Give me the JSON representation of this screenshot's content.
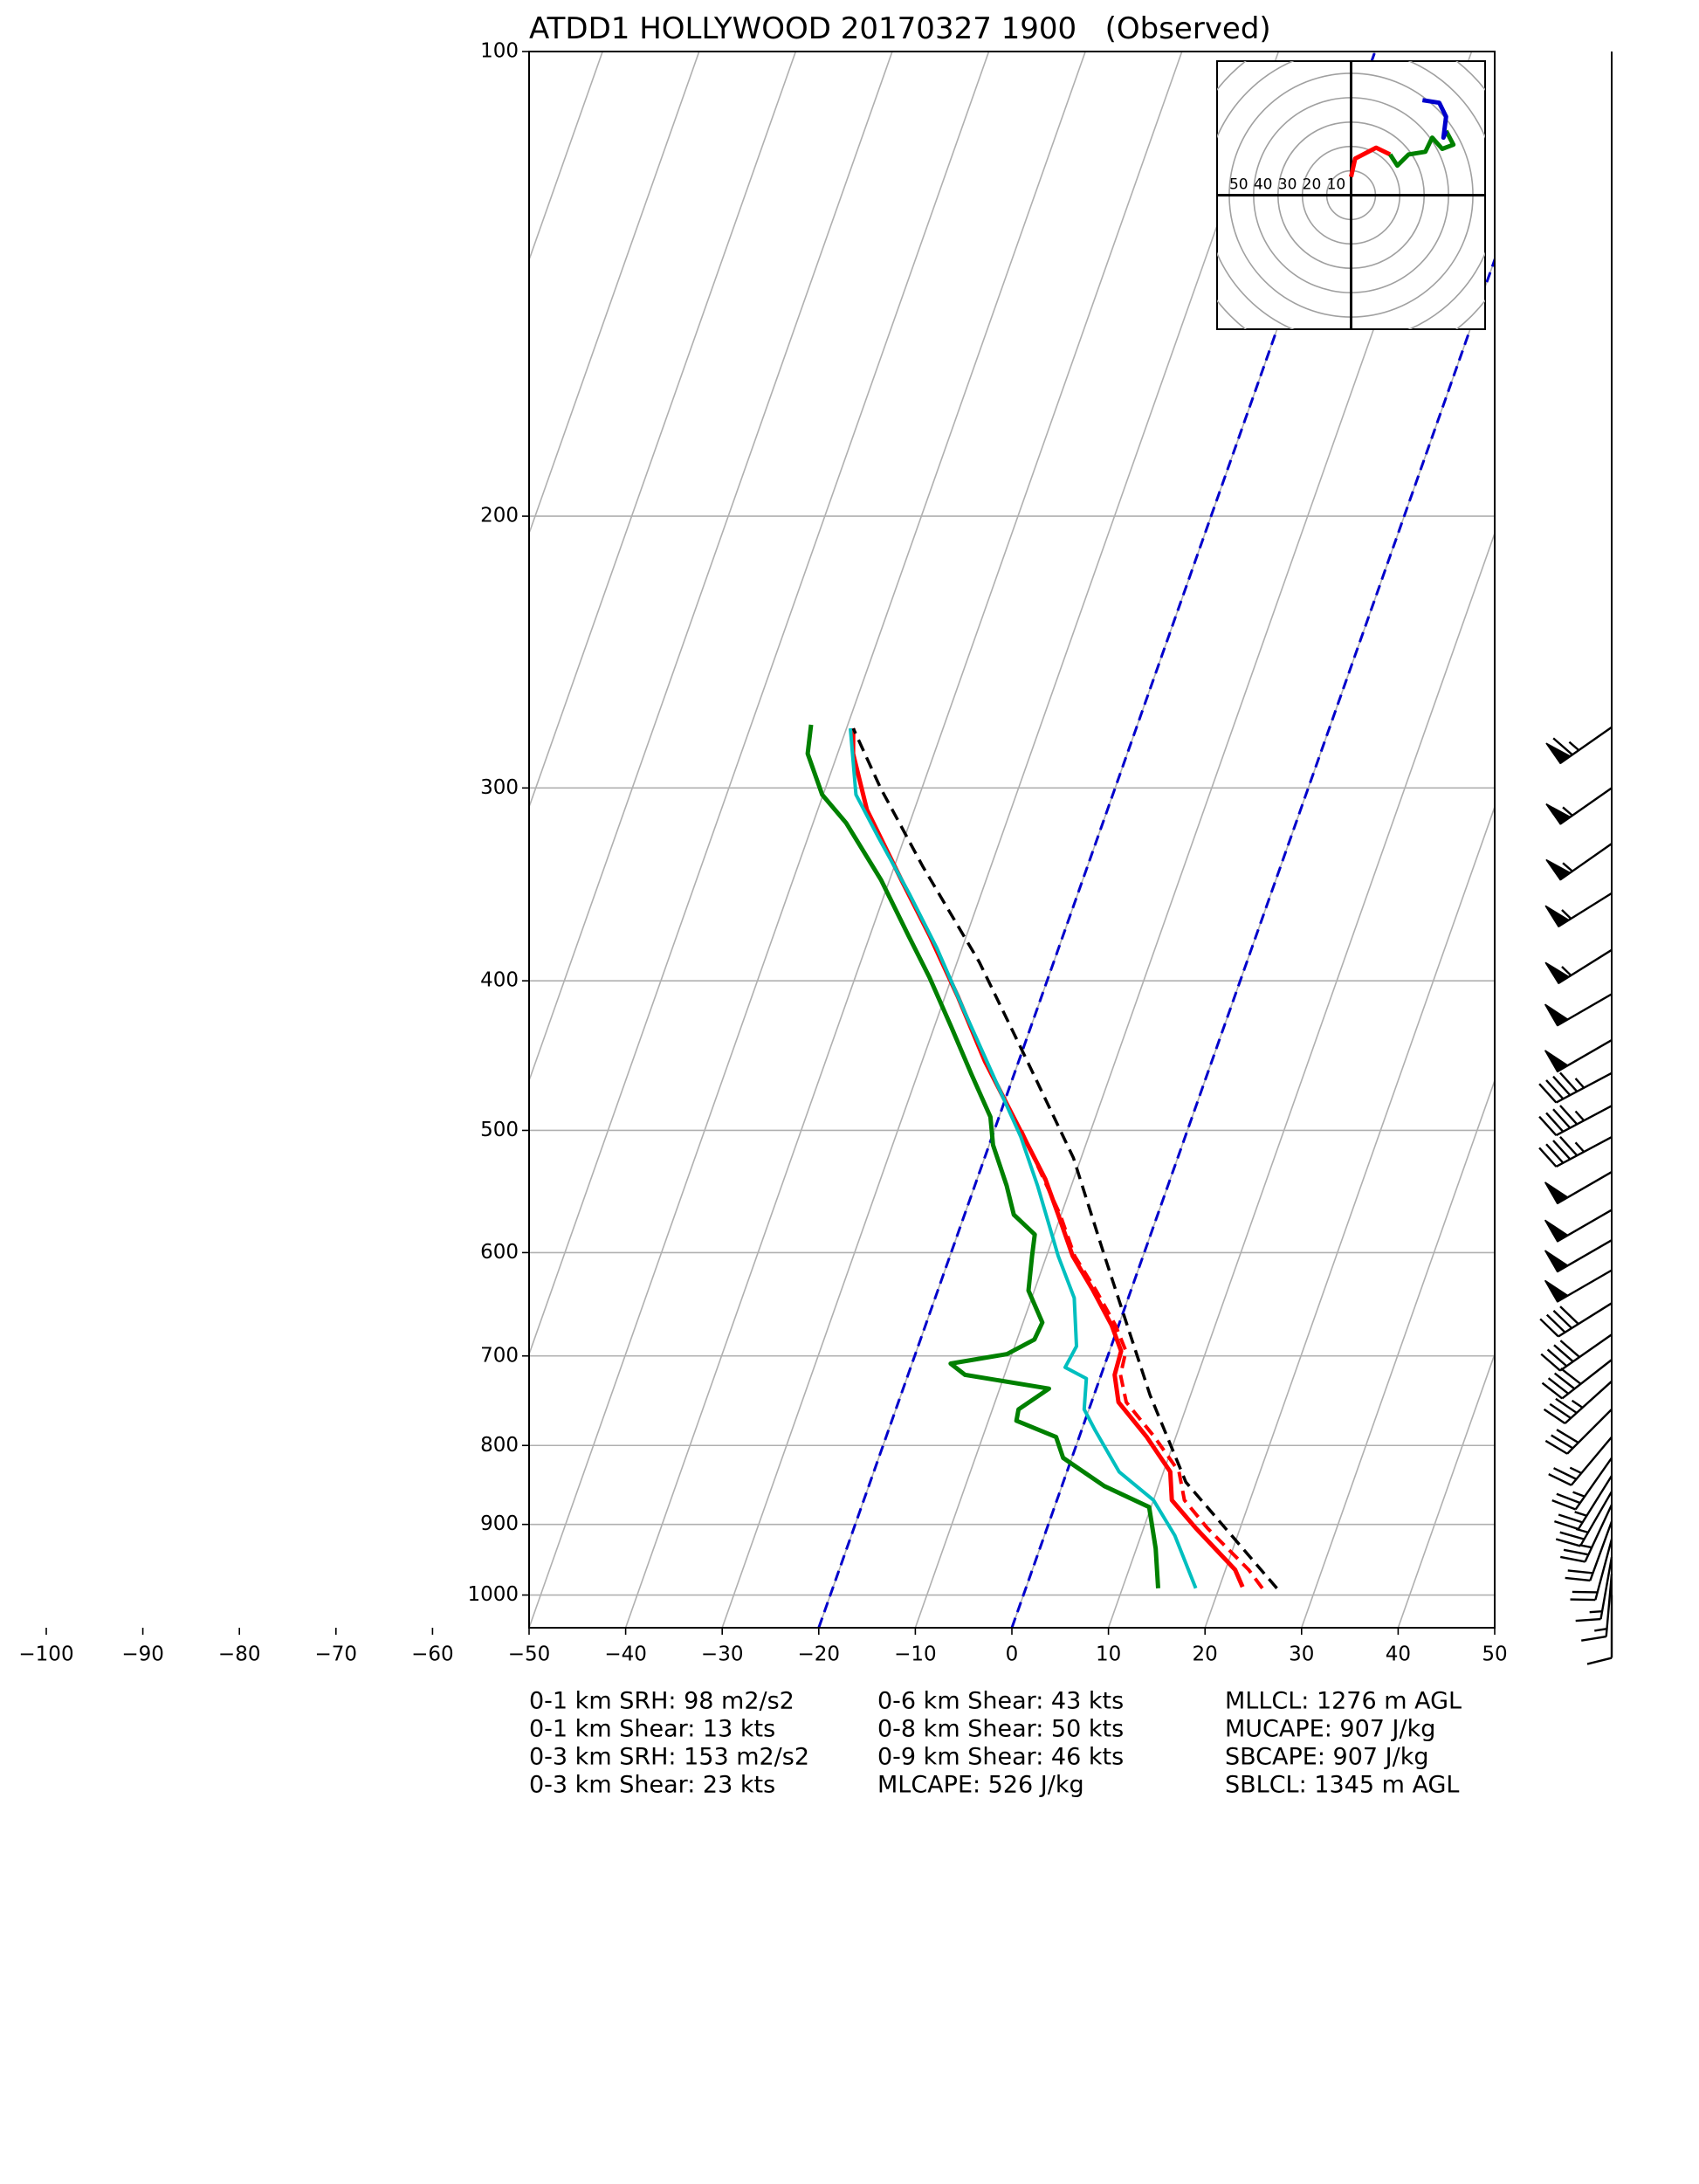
{
  "chart_data": {
    "type": "skewt",
    "title": "ATDD1 HOLLYWOOD 20170327 1900   (Observed)",
    "xlim": [
      -50,
      50
    ],
    "xticks": [
      {
        "value": -100,
        "label": "−100"
      },
      {
        "value": -90,
        "label": "−90"
      },
      {
        "value": -80,
        "label": "−80"
      },
      {
        "value": -70,
        "label": "−70"
      },
      {
        "value": -60,
        "label": "−60"
      },
      {
        "value": -50,
        "label": "−50"
      },
      {
        "value": -40,
        "label": "−40"
      },
      {
        "value": -30,
        "label": "−30"
      },
      {
        "value": -20,
        "label": "−20"
      },
      {
        "value": -10,
        "label": "−10"
      },
      0,
      10,
      20,
      30,
      40,
      50
    ],
    "ylim": [
      1050,
      100
    ],
    "yticks": [
      100,
      200,
      300,
      400,
      500,
      600,
      700,
      800,
      900,
      1000
    ],
    "log_scale": true,
    "grid": true,
    "special_isotherms": {
      "values": [
        -20,
        0
      ],
      "color": "#0000cc"
    },
    "series": [
      {
        "color": "#ff0000",
        "style": "dashed",
        "width": 4,
        "pressure": [
          990,
          963,
          905,
          868,
          832,
          790,
          750,
          720,
          695,
          669,
          635,
          603,
          567,
          500
        ],
        "values": [
          24.5,
          22.4,
          16.6,
          13.2,
          11.6,
          7.8,
          3.6,
          2.0,
          1.7,
          -0.3,
          -3.6,
          -7.1,
          -10.1,
          -17.2
        ]
      },
      {
        "color": "#ff0000",
        "style": "solid",
        "width": 5,
        "pressure": [
          988,
          963,
          905,
          868,
          832,
          790,
          750,
          720,
          695,
          669,
          635,
          603,
          567,
          538,
          500,
          451,
          410,
          374,
          344,
          310,
          285,
          274.5
        ],
        "values": [
          22.4,
          21.0,
          15.4,
          11.9,
          10.7,
          7.0,
          2.8,
          1.4,
          1.2,
          -0.7,
          -3.9,
          -7.3,
          -10.3,
          -12.9,
          -17.3,
          -23.5,
          -28.6,
          -33.8,
          -38.8,
          -44.9,
          -48.4,
          -49.3
        ]
      },
      {
        "color": "#00bfbf",
        "style": "solid",
        "width": 4,
        "pressure": [
          990,
          915,
          868,
          832,
          782,
          758,
          724,
          712,
          690,
          642,
          603,
          543,
          505,
          460,
          419,
          381,
          351,
          323,
          303,
          274.5
        ],
        "values": [
          17.6,
          13.5,
          10.0,
          5.4,
          1.4,
          -0.5,
          -1.4,
          -4.0,
          -3.6,
          -5.6,
          -8.8,
          -13.5,
          -17.0,
          -22.2,
          -27.4,
          -32.6,
          -37.5,
          -42.7,
          -46.6,
          -49.6
        ]
      },
      {
        "color": "#008000",
        "style": "solid",
        "width": 5,
        "pressure": [
          990,
          933,
          877,
          850,
          815,
          790,
          771,
          758,
          735,
          720,
          708,
          698,
          683,
          666,
          635,
          603,
          584,
          567,
          543,
          511,
          490,
          460,
          428,
          398,
          374,
          344,
          316,
          303,
          285,
          273
        ],
        "values": [
          13.7,
          12.0,
          9.8,
          4.4,
          -0.9,
          -2.4,
          -7.1,
          -7.3,
          -4.9,
          -14.1,
          -16.0,
          -10.5,
          -8.2,
          -8.0,
          -10.6,
          -11.5,
          -12.0,
          -14.9,
          -16.7,
          -19.6,
          -20.9,
          -24.4,
          -28.3,
          -32.3,
          -36.0,
          -40.9,
          -46.6,
          -50.1,
          -53.1,
          -53.8
        ]
      },
      {
        "color": "#000000",
        "style": "dashed",
        "width": 3.5,
        "pressure": [
          990,
          845,
          742,
          603,
          521,
          451,
          389,
          337,
          300,
          274.5
        ],
        "values": [
          26.0,
          12.7,
          5.8,
          -4.0,
          -10.8,
          -19.1,
          -27.7,
          -37.1,
          -44.3,
          -49.3
        ]
      }
    ],
    "hodograph": {
      "xlim": [
        -55,
        55
      ],
      "ylim": [
        -55,
        55
      ],
      "rings": [
        10,
        20,
        30,
        40,
        50,
        60,
        70,
        80
      ],
      "ring_labels": [
        50,
        40,
        30,
        20,
        10
      ],
      "segments": [
        {
          "color": "#ff0000",
          "u": [
            0,
            1.7,
            10.3,
            16
          ],
          "v": [
            7.5,
            15,
            19.5,
            16.7
          ]
        },
        {
          "color": "#008000",
          "u": [
            16,
            19,
            23.6,
            30.5,
            33.3,
            37.4,
            42,
            39
          ],
          "v": [
            16.7,
            12.1,
            16.7,
            17.8,
            23.6,
            19,
            20.7,
            26.4
          ]
        },
        {
          "color": "#0000cc",
          "u": [
            39,
            37.9,
            39,
            36.2,
            29.3
          ],
          "v": [
            26.4,
            23.6,
            32.2,
            37.9,
            39
          ]
        }
      ]
    },
    "wind_barbs": {
      "pressure": [
        274,
        300,
        326,
        351,
        382,
        408,
        437,
        459,
        482,
        505,
        532,
        563,
        589,
        616,
        647,
        678,
        704,
        727,
        758,
        790,
        815,
        837,
        857,
        874,
        896,
        920,
        945,
        969,
        1000
      ],
      "speed": [
        65,
        55,
        55,
        55,
        55,
        50,
        50,
        45,
        45,
        45,
        50,
        50,
        50,
        50,
        40,
        40,
        40,
        35,
        30,
        25,
        25,
        25,
        25,
        25,
        20,
        20,
        15,
        15,
        10
      ],
      "direction": [
        235,
        235,
        235,
        238,
        238,
        240,
        240,
        242,
        242,
        242,
        240,
        240,
        240,
        240,
        238,
        235,
        232,
        228,
        225,
        220,
        215,
        212,
        210,
        205,
        200,
        195,
        190,
        185,
        180
      ]
    },
    "stats": [
      [
        "0-1 km SRH: 98 m2/s2",
        "0-1 km Shear: 13 kts",
        "0-3 km SRH: 153 m2/s2",
        "0-3 km Shear: 23 kts"
      ],
      [
        "0-6 km Shear: 43 kts",
        "0-8 km Shear: 50 kts",
        "0-9 km Shear: 46 kts",
        "MLCAPE: 526 J/kg"
      ],
      [
        "MLLCL: 1276 m AGL",
        "MUCAPE: 907 J/kg",
        "SBCAPE: 907 J/kg",
        "SBLCL: 1345 m AGL"
      ]
    ]
  }
}
